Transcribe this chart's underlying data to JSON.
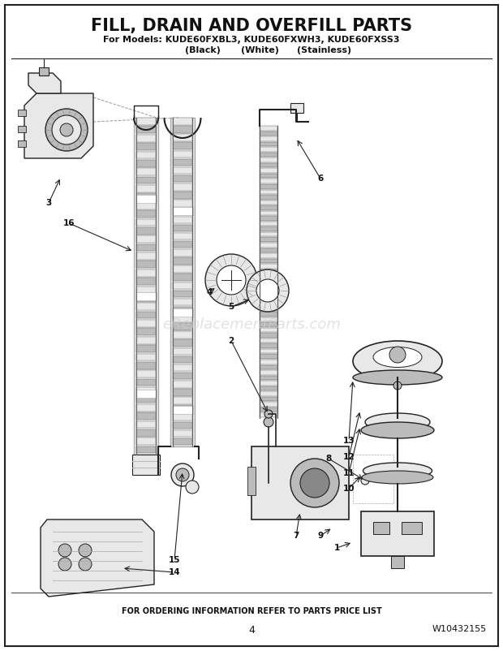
{
  "title_line1": "FILL, DRAIN AND OVERFILL PARTS",
  "title_line2": "For Models: KUDE60FXBL3, KUDE60FXWH3, KUDE60FXSS3",
  "title_line3_black": "(Black)",
  "title_line3_white": "(White)",
  "title_line3_stainless": "(Stainless)",
  "footer_text": "FOR ORDERING INFORMATION REFER TO PARTS PRICE LIST",
  "page_number": "4",
  "part_number": "W10432155",
  "watermark": "eReplacementParts.com",
  "background_color": "#ffffff",
  "border_color": "#000000",
  "title_color": "#111111",
  "footer_color": "#111111",
  "watermark_color": "#d0d0d0",
  "fig_width": 6.2,
  "fig_height": 8.02,
  "dpi": 100
}
